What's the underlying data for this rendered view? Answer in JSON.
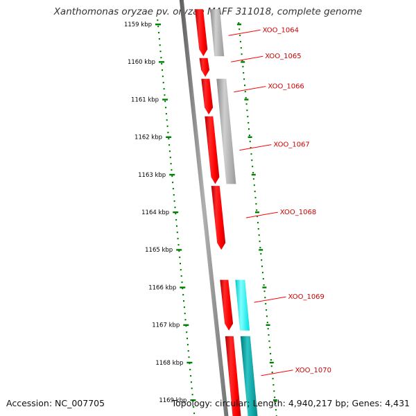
{
  "title": "Xanthomonas oryzae pv. oryzae MAFF 311018, complete genome",
  "footer": {
    "accession": "Accession: NC_007705",
    "summary": "Topology: circular; Length: 4,940,217 bp; Genes: 4,431"
  },
  "scale": {
    "unit": "kbp",
    "ticks": [
      1159,
      1160,
      1161,
      1162,
      1163,
      1164,
      1165,
      1166,
      1167,
      1168,
      1169
    ]
  },
  "gene_labels": [
    "XOO_1064",
    "XOO_1065",
    "XOO_1066",
    "XOO_1067",
    "XOO_1068",
    "XOO_1069",
    "XOO_1070"
  ],
  "features": [
    {
      "track": "forward",
      "start_kbp": 1158.6,
      "end_kbp": 1159.85,
      "color": "#ff0000"
    },
    {
      "track": "forward",
      "start_kbp": 1159.9,
      "end_kbp": 1160.4,
      "color": "#ff0000"
    },
    {
      "track": "forward",
      "start_kbp": 1160.45,
      "end_kbp": 1161.4,
      "color": "#ff0000"
    },
    {
      "track": "forward",
      "start_kbp": 1161.45,
      "end_kbp": 1163.25,
      "color": "#ff0000"
    },
    {
      "track": "forward",
      "start_kbp": 1163.3,
      "end_kbp": 1165.0,
      "color": "#ff0000"
    },
    {
      "track": "forward",
      "start_kbp": 1165.8,
      "end_kbp": 1167.15,
      "color": "#ff0000"
    },
    {
      "track": "forward",
      "start_kbp": 1167.3,
      "end_kbp": 1169.5,
      "color": "#ff0000"
    },
    {
      "track": "second",
      "start_kbp": 1158.6,
      "end_kbp": 1159.85,
      "color": "#aaaaaa"
    },
    {
      "track": "second",
      "start_kbp": 1160.45,
      "end_kbp": 1163.25,
      "color": "#aaaaaa"
    },
    {
      "track": "second",
      "start_kbp": 1165.8,
      "end_kbp": 1167.15,
      "color": "#00ffff"
    },
    {
      "track": "second",
      "start_kbp": 1167.3,
      "end_kbp": 1169.5,
      "color": "#00a6a6"
    }
  ],
  "label_anchors_kbp": [
    1159.3,
    1160.0,
    1160.8,
    1162.35,
    1164.15,
    1166.4,
    1168.35
  ],
  "colors": {
    "backbone": "#808080",
    "scale_dots": "#008000",
    "gene_forward": "#ff0000",
    "label_text": "#cc0000",
    "leader_line": "#ff0000"
  }
}
